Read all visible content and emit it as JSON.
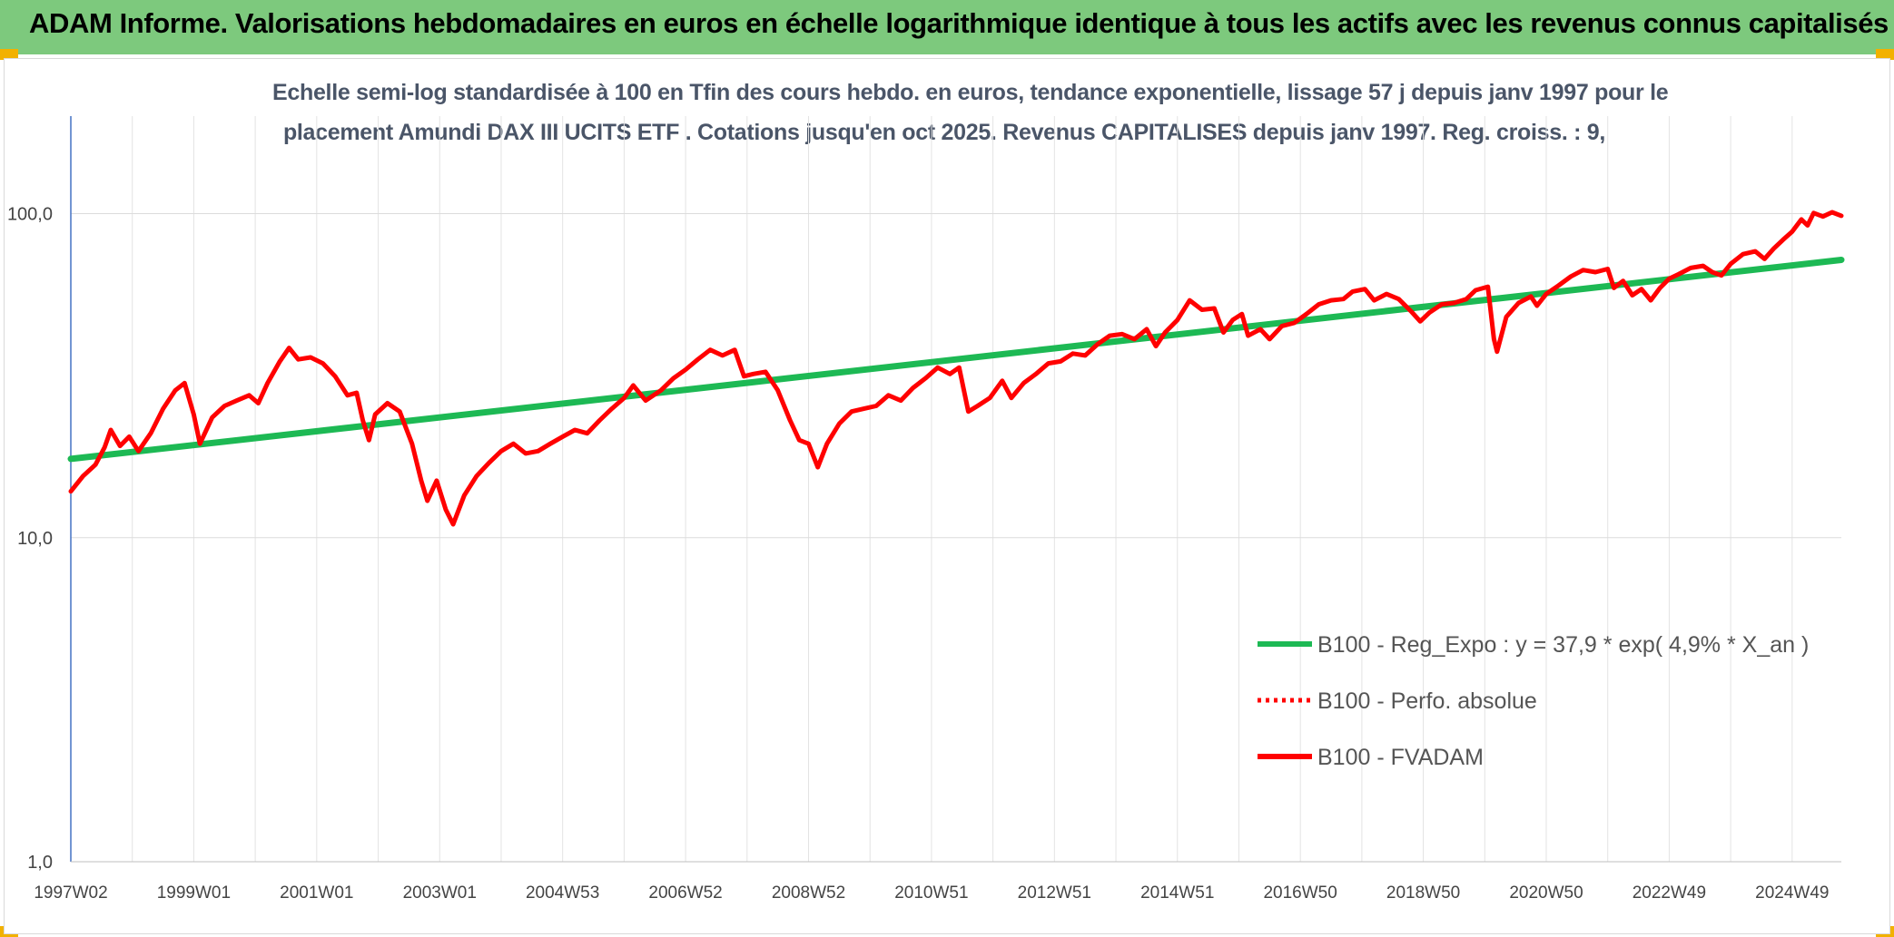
{
  "banner": {
    "title": "ADAM Informe. Valorisations hebdomadaires en euros en échelle logarithmique identique à tous les actifs avec les revenus connus capitalisés",
    "color": "#7dc97d"
  },
  "chart_data": {
    "type": "line",
    "title_line1": "Echelle semi-log standardisée à 100 en Tfin des cours hebdo. en euros, tendance exponentielle, lissage 57 j depuis janv 1997 pour le",
    "title_line2": "placement Amundi DAX III UCITS ETF . Cotations jusqu'en oct 2025. Revenus CAPITALISES depuis janv 1997. Reg. croiss. : 9,",
    "y_scale": "log",
    "ylim": [
      1,
      200
    ],
    "y_ticks": [
      {
        "value": 1,
        "label": "1,0"
      },
      {
        "value": 10,
        "label": "10,0"
      },
      {
        "value": 100,
        "label": "100,0"
      }
    ],
    "xlim": [
      1997.0,
      2025.8
    ],
    "x_ticks": [
      {
        "value": 1997.0,
        "label": "1997W02"
      },
      {
        "value": 1999.0,
        "label": "1999W01"
      },
      {
        "value": 2001.0,
        "label": "2001W01"
      },
      {
        "value": 2003.0,
        "label": "2003W01"
      },
      {
        "value": 2005.0,
        "label": "2004W53"
      },
      {
        "value": 2007.0,
        "label": "2006W52"
      },
      {
        "value": 2009.0,
        "label": "2008W52"
      },
      {
        "value": 2011.0,
        "label": "2010W51"
      },
      {
        "value": 2013.0,
        "label": "2012W51"
      },
      {
        "value": 2015.0,
        "label": "2014W51"
      },
      {
        "value": 2017.0,
        "label": "2016W50"
      },
      {
        "value": 2019.0,
        "label": "2018W50"
      },
      {
        "value": 2021.0,
        "label": "2020W50"
      },
      {
        "value": 2023.0,
        "label": "2022W49"
      },
      {
        "value": 2025.0,
        "label": "2024W49"
      }
    ],
    "grid": "vertical and horizontal",
    "legend_position": "bottom-right",
    "series": [
      {
        "name": "B100 - Reg_Expo : y = 37,9 * exp( 4,9% *  X_an )",
        "color": "#1db954",
        "style": "solid",
        "points": [
          [
            1997.0,
            17.5
          ],
          [
            2025.8,
            72.0
          ]
        ]
      },
      {
        "name": "B100 - Perfo. absolue",
        "color": "#ff0000",
        "style": "dotted",
        "points": []
      },
      {
        "name": "B100 - FVADAM",
        "color": "#ff0000",
        "style": "solid",
        "points": [
          [
            1997.0,
            13.9
          ],
          [
            1997.2,
            15.5
          ],
          [
            1997.4,
            16.8
          ],
          [
            1997.55,
            19.0
          ],
          [
            1997.65,
            21.5
          ],
          [
            1997.8,
            19.2
          ],
          [
            1997.95,
            20.5
          ],
          [
            1998.1,
            18.5
          ],
          [
            1998.3,
            21.0
          ],
          [
            1998.5,
            25.0
          ],
          [
            1998.7,
            28.5
          ],
          [
            1998.85,
            30.0
          ],
          [
            1999.0,
            24.0
          ],
          [
            1999.1,
            19.5
          ],
          [
            1999.3,
            23.5
          ],
          [
            1999.5,
            25.5
          ],
          [
            1999.7,
            26.5
          ],
          [
            1999.9,
            27.5
          ],
          [
            2000.05,
            26.0
          ],
          [
            2000.2,
            30.0
          ],
          [
            2000.4,
            35.0
          ],
          [
            2000.55,
            38.5
          ],
          [
            2000.7,
            35.5
          ],
          [
            2000.9,
            36.0
          ],
          [
            2001.1,
            34.5
          ],
          [
            2001.3,
            31.5
          ],
          [
            2001.5,
            27.5
          ],
          [
            2001.65,
            28.0
          ],
          [
            2001.75,
            23.0
          ],
          [
            2001.85,
            20.0
          ],
          [
            2001.95,
            24.0
          ],
          [
            2002.15,
            26.0
          ],
          [
            2002.35,
            24.5
          ],
          [
            2002.55,
            19.5
          ],
          [
            2002.7,
            15.0
          ],
          [
            2002.8,
            13.0
          ],
          [
            2002.95,
            15.0
          ],
          [
            2003.1,
            12.2
          ],
          [
            2003.22,
            11.0
          ],
          [
            2003.4,
            13.5
          ],
          [
            2003.6,
            15.5
          ],
          [
            2003.8,
            17.0
          ],
          [
            2004.0,
            18.5
          ],
          [
            2004.2,
            19.5
          ],
          [
            2004.4,
            18.2
          ],
          [
            2004.6,
            18.5
          ],
          [
            2004.8,
            19.5
          ],
          [
            2005.0,
            20.5
          ],
          [
            2005.2,
            21.5
          ],
          [
            2005.4,
            21.0
          ],
          [
            2005.6,
            23.0
          ],
          [
            2005.8,
            25.0
          ],
          [
            2006.0,
            27.0
          ],
          [
            2006.15,
            29.5
          ],
          [
            2006.35,
            26.5
          ],
          [
            2006.6,
            28.5
          ],
          [
            2006.8,
            31.0
          ],
          [
            2007.0,
            33.0
          ],
          [
            2007.2,
            35.5
          ],
          [
            2007.4,
            38.0
          ],
          [
            2007.6,
            36.5
          ],
          [
            2007.8,
            38.0
          ],
          [
            2007.95,
            31.5
          ],
          [
            2008.1,
            32.0
          ],
          [
            2008.3,
            32.5
          ],
          [
            2008.5,
            28.5
          ],
          [
            2008.7,
            23.0
          ],
          [
            2008.85,
            20.0
          ],
          [
            2009.0,
            19.5
          ],
          [
            2009.15,
            16.5
          ],
          [
            2009.3,
            19.5
          ],
          [
            2009.5,
            22.5
          ],
          [
            2009.7,
            24.5
          ],
          [
            2009.9,
            25.0
          ],
          [
            2010.1,
            25.5
          ],
          [
            2010.3,
            27.5
          ],
          [
            2010.5,
            26.5
          ],
          [
            2010.7,
            29.0
          ],
          [
            2010.9,
            31.0
          ],
          [
            2011.1,
            33.5
          ],
          [
            2011.3,
            32.0
          ],
          [
            2011.45,
            33.5
          ],
          [
            2011.6,
            24.5
          ],
          [
            2011.75,
            25.5
          ],
          [
            2011.95,
            27.0
          ],
          [
            2012.15,
            30.5
          ],
          [
            2012.3,
            27.0
          ],
          [
            2012.5,
            30.0
          ],
          [
            2012.7,
            32.0
          ],
          [
            2012.9,
            34.5
          ],
          [
            2013.1,
            35.0
          ],
          [
            2013.3,
            37.0
          ],
          [
            2013.5,
            36.5
          ],
          [
            2013.7,
            39.5
          ],
          [
            2013.9,
            42.0
          ],
          [
            2014.1,
            42.5
          ],
          [
            2014.3,
            41.0
          ],
          [
            2014.5,
            44.0
          ],
          [
            2014.65,
            39.0
          ],
          [
            2014.8,
            43.0
          ],
          [
            2015.0,
            47.0
          ],
          [
            2015.2,
            54.0
          ],
          [
            2015.4,
            50.5
          ],
          [
            2015.6,
            51.0
          ],
          [
            2015.75,
            43.0
          ],
          [
            2015.9,
            47.0
          ],
          [
            2016.05,
            49.0
          ],
          [
            2016.15,
            42.0
          ],
          [
            2016.35,
            44.0
          ],
          [
            2016.5,
            41.0
          ],
          [
            2016.7,
            45.0
          ],
          [
            2016.9,
            46.0
          ],
          [
            2017.1,
            49.0
          ],
          [
            2017.3,
            52.5
          ],
          [
            2017.5,
            54.0
          ],
          [
            2017.7,
            54.5
          ],
          [
            2017.85,
            57.5
          ],
          [
            2018.05,
            58.5
          ],
          [
            2018.2,
            54.0
          ],
          [
            2018.4,
            56.5
          ],
          [
            2018.6,
            54.5
          ],
          [
            2018.8,
            50.0
          ],
          [
            2018.95,
            46.5
          ],
          [
            2019.1,
            49.5
          ],
          [
            2019.3,
            52.5
          ],
          [
            2019.5,
            53.0
          ],
          [
            2019.7,
            54.5
          ],
          [
            2019.85,
            58.0
          ],
          [
            2020.05,
            59.5
          ],
          [
            2020.15,
            41.0
          ],
          [
            2020.2,
            37.5
          ],
          [
            2020.35,
            48.0
          ],
          [
            2020.55,
            53.0
          ],
          [
            2020.75,
            55.5
          ],
          [
            2020.85,
            52.0
          ],
          [
            2021.0,
            56.5
          ],
          [
            2021.2,
            60.0
          ],
          [
            2021.4,
            64.0
          ],
          [
            2021.6,
            67.0
          ],
          [
            2021.8,
            66.0
          ],
          [
            2022.0,
            67.5
          ],
          [
            2022.1,
            59.0
          ],
          [
            2022.25,
            62.0
          ],
          [
            2022.4,
            56.0
          ],
          [
            2022.55,
            58.5
          ],
          [
            2022.7,
            54.0
          ],
          [
            2022.85,
            59.0
          ],
          [
            2023.0,
            63.0
          ],
          [
            2023.15,
            65.0
          ],
          [
            2023.35,
            68.0
          ],
          [
            2023.55,
            69.0
          ],
          [
            2023.7,
            66.0
          ],
          [
            2023.85,
            64.5
          ],
          [
            2024.0,
            70.0
          ],
          [
            2024.2,
            75.0
          ],
          [
            2024.4,
            76.5
          ],
          [
            2024.55,
            72.5
          ],
          [
            2024.7,
            78.0
          ],
          [
            2024.85,
            83.0
          ],
          [
            2025.0,
            88.0
          ],
          [
            2025.15,
            96.0
          ],
          [
            2025.25,
            92.0
          ],
          [
            2025.35,
            100.5
          ],
          [
            2025.5,
            98.0
          ],
          [
            2025.65,
            101.0
          ],
          [
            2025.8,
            98.5
          ]
        ]
      }
    ]
  }
}
